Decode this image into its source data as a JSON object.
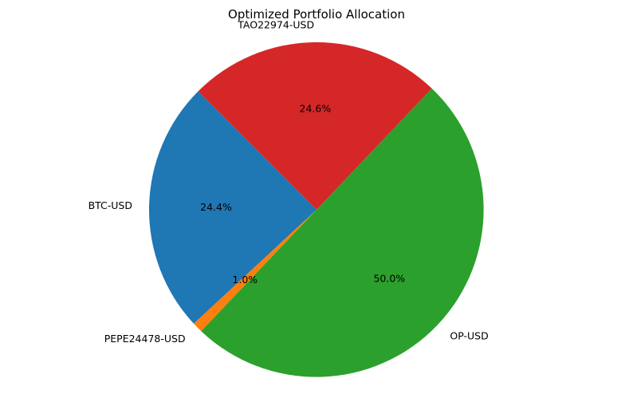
{
  "chart_data": {
    "type": "pie",
    "title": "Optimized Portfolio Allocation",
    "slices": [
      {
        "label": "BTC-USD",
        "value": 24.4,
        "pct_label": "24.4%",
        "color": "#1f77b4"
      },
      {
        "label": "PEPE24478-USD",
        "value": 1.0,
        "pct_label": "1.0%",
        "color": "#ff7f0e"
      },
      {
        "label": "OP-USD",
        "value": 50.0,
        "pct_label": "50.0%",
        "color": "#2ca02c"
      },
      {
        "label": "TAO22974-USD",
        "value": 24.6,
        "pct_label": "24.6%",
        "color": "#d62728"
      }
    ],
    "legend": "none"
  }
}
